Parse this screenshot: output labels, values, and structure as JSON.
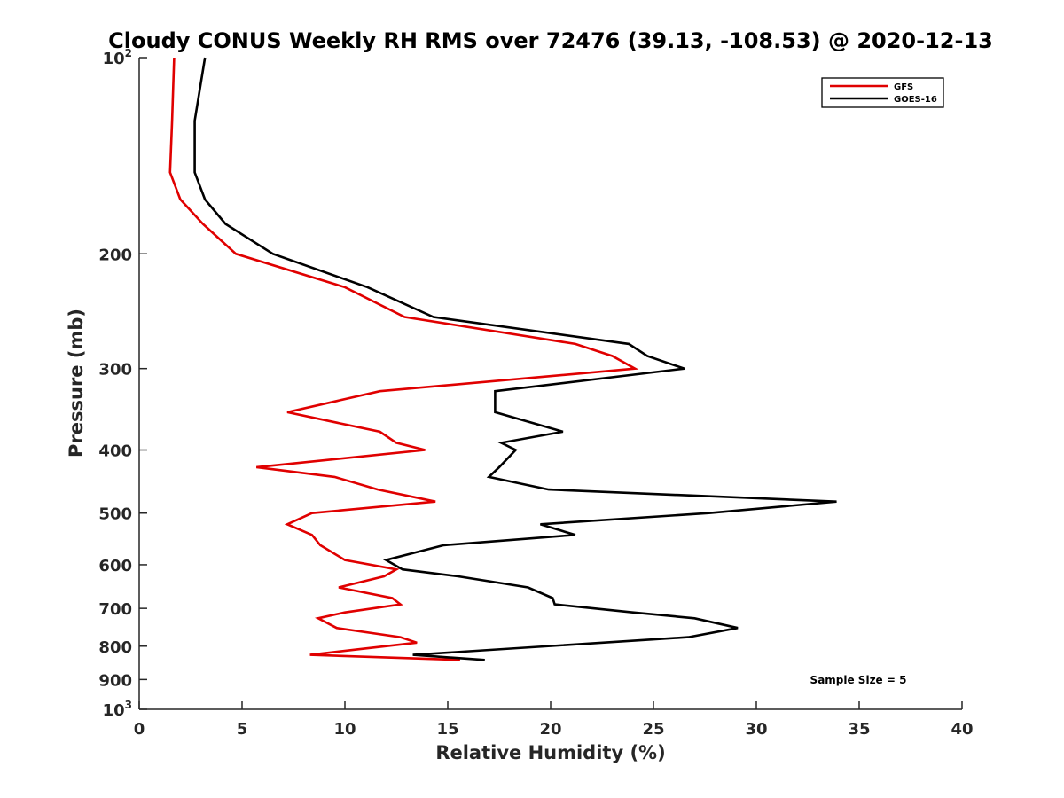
{
  "chart_data": {
    "type": "line",
    "title": "Cloudy CONUS Weekly RH RMS over 72476 (39.13, -108.53) @ 2020-12-13",
    "xlabel": "Relative Humidity (%)",
    "ylabel": "Pressure (mb)",
    "xlim": [
      0,
      40
    ],
    "ylim": [
      100,
      1000
    ],
    "y_scale": "log",
    "y_reversed": true,
    "grid": false,
    "legend_position": "top-right",
    "x_ticks": [
      {
        "value": 0,
        "label": "0"
      },
      {
        "value": 5,
        "label": "5"
      },
      {
        "value": 10,
        "label": "10"
      },
      {
        "value": 15,
        "label": "15"
      },
      {
        "value": 20,
        "label": "20"
      },
      {
        "value": 25,
        "label": "25"
      },
      {
        "value": 30,
        "label": "30"
      },
      {
        "value": 35,
        "label": "35"
      },
      {
        "value": 40,
        "label": "40"
      }
    ],
    "y_ticks": [
      {
        "value": 100,
        "label": "10",
        "exp": "2"
      },
      {
        "value": 200,
        "label": "200"
      },
      {
        "value": 300,
        "label": "300"
      },
      {
        "value": 400,
        "label": "400"
      },
      {
        "value": 500,
        "label": "500"
      },
      {
        "value": 600,
        "label": "600"
      },
      {
        "value": 700,
        "label": "700"
      },
      {
        "value": 800,
        "label": "800"
      },
      {
        "value": 900,
        "label": "900"
      },
      {
        "value": 1000,
        "label": "10",
        "exp": "3"
      }
    ],
    "series": [
      {
        "name": "GFS",
        "color": "#e00000",
        "points": [
          {
            "x": 1.7,
            "y": 100
          },
          {
            "x": 1.6,
            "y": 125
          },
          {
            "x": 1.5,
            "y": 150
          },
          {
            "x": 2.0,
            "y": 165
          },
          {
            "x": 3.1,
            "y": 180
          },
          {
            "x": 4.7,
            "y": 200
          },
          {
            "x": 10.0,
            "y": 225
          },
          {
            "x": 12.9,
            "y": 250
          },
          {
            "x": 21.2,
            "y": 275
          },
          {
            "x": 23.0,
            "y": 287
          },
          {
            "x": 24.1,
            "y": 300
          },
          {
            "x": 11.7,
            "y": 325
          },
          {
            "x": 7.2,
            "y": 350
          },
          {
            "x": 11.7,
            "y": 375
          },
          {
            "x": 12.5,
            "y": 390
          },
          {
            "x": 13.9,
            "y": 400
          },
          {
            "x": 5.7,
            "y": 425
          },
          {
            "x": 9.5,
            "y": 440
          },
          {
            "x": 11.6,
            "y": 460
          },
          {
            "x": 14.4,
            "y": 480
          },
          {
            "x": 8.4,
            "y": 500
          },
          {
            "x": 7.2,
            "y": 520
          },
          {
            "x": 8.4,
            "y": 540
          },
          {
            "x": 8.8,
            "y": 560
          },
          {
            "x": 10.0,
            "y": 590
          },
          {
            "x": 12.5,
            "y": 610
          },
          {
            "x": 11.9,
            "y": 625
          },
          {
            "x": 9.7,
            "y": 650
          },
          {
            "x": 12.3,
            "y": 675
          },
          {
            "x": 12.7,
            "y": 690
          },
          {
            "x": 10.0,
            "y": 710
          },
          {
            "x": 8.7,
            "y": 725
          },
          {
            "x": 9.6,
            "y": 750
          },
          {
            "x": 12.7,
            "y": 775
          },
          {
            "x": 13.5,
            "y": 790
          },
          {
            "x": 10.5,
            "y": 810
          },
          {
            "x": 8.3,
            "y": 825
          },
          {
            "x": 15.6,
            "y": 840
          }
        ]
      },
      {
        "name": "GOES-16",
        "color": "#000000",
        "points": [
          {
            "x": 3.2,
            "y": 100
          },
          {
            "x": 2.7,
            "y": 125
          },
          {
            "x": 2.7,
            "y": 150
          },
          {
            "x": 3.2,
            "y": 165
          },
          {
            "x": 4.2,
            "y": 180
          },
          {
            "x": 6.5,
            "y": 200
          },
          {
            "x": 11.1,
            "y": 225
          },
          {
            "x": 14.3,
            "y": 250
          },
          {
            "x": 23.8,
            "y": 275
          },
          {
            "x": 24.7,
            "y": 287
          },
          {
            "x": 26.5,
            "y": 300
          },
          {
            "x": 17.3,
            "y": 325
          },
          {
            "x": 17.3,
            "y": 350
          },
          {
            "x": 20.6,
            "y": 375
          },
          {
            "x": 17.6,
            "y": 390
          },
          {
            "x": 18.3,
            "y": 400
          },
          {
            "x": 17.5,
            "y": 425
          },
          {
            "x": 17.0,
            "y": 440
          },
          {
            "x": 19.9,
            "y": 460
          },
          {
            "x": 33.9,
            "y": 480
          },
          {
            "x": 27.7,
            "y": 500
          },
          {
            "x": 19.5,
            "y": 520
          },
          {
            "x": 21.2,
            "y": 540
          },
          {
            "x": 14.8,
            "y": 560
          },
          {
            "x": 12.0,
            "y": 590
          },
          {
            "x": 12.8,
            "y": 610
          },
          {
            "x": 15.5,
            "y": 625
          },
          {
            "x": 18.9,
            "y": 650
          },
          {
            "x": 20.1,
            "y": 675
          },
          {
            "x": 20.2,
            "y": 690
          },
          {
            "x": 24.0,
            "y": 710
          },
          {
            "x": 27.0,
            "y": 725
          },
          {
            "x": 29.1,
            "y": 750
          },
          {
            "x": 26.7,
            "y": 775
          },
          {
            "x": 13.3,
            "y": 825
          },
          {
            "x": 16.8,
            "y": 840
          }
        ]
      }
    ],
    "annotations": [
      {
        "text": "Sample Size = 5",
        "position": "bottom-right"
      }
    ]
  }
}
